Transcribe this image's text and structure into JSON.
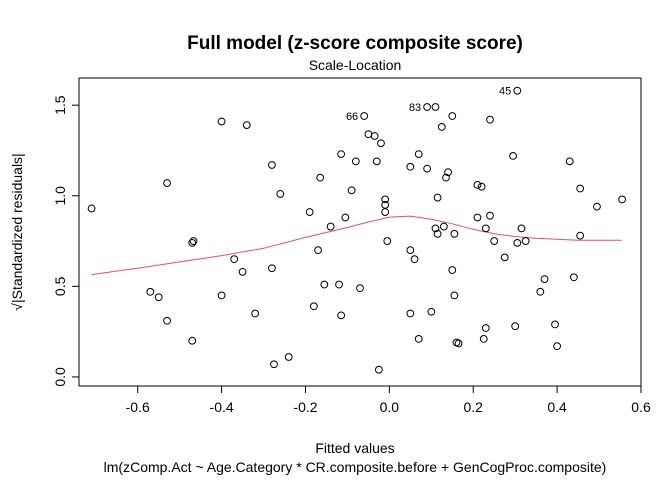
{
  "chart_data": {
    "type": "scatter",
    "title": "Full model (z-score composite score)",
    "subtitle": "Scale-Location",
    "xlabel": "Fitted values",
    "xlabel2": "lm(zComp.Act ~ Age.Category * CR.composite.before + GenCogProc.composite)",
    "ylabel": "√|Standardized residuals|",
    "xlim": [
      -0.74,
      0.6
    ],
    "ylim": [
      -0.05,
      1.65
    ],
    "x_ticks": [
      -0.6,
      -0.4,
      -0.2,
      0.0,
      0.2,
      0.4,
      0.6
    ],
    "x_tick_labels": [
      "-0.6",
      "-0.4",
      "-0.2",
      "0.0",
      "0.2",
      "0.4",
      "0.6"
    ],
    "y_ticks": [
      0.0,
      0.5,
      1.0,
      1.5
    ],
    "y_tick_labels": [
      "0.0",
      "0.5",
      "1.0",
      "1.5"
    ],
    "grid": false,
    "points": [
      {
        "x": -0.71,
        "y": 0.93
      },
      {
        "x": -0.57,
        "y": 0.47
      },
      {
        "x": -0.55,
        "y": 0.44
      },
      {
        "x": -0.53,
        "y": 1.07
      },
      {
        "x": -0.53,
        "y": 0.31
      },
      {
        "x": -0.47,
        "y": 0.74
      },
      {
        "x": -0.467,
        "y": 0.75
      },
      {
        "x": -0.47,
        "y": 0.2
      },
      {
        "x": -0.4,
        "y": 1.41
      },
      {
        "x": -0.4,
        "y": 0.45
      },
      {
        "x": -0.37,
        "y": 0.65
      },
      {
        "x": -0.35,
        "y": 0.58
      },
      {
        "x": -0.34,
        "y": 1.39
      },
      {
        "x": -0.32,
        "y": 0.35
      },
      {
        "x": -0.28,
        "y": 1.17
      },
      {
        "x": -0.28,
        "y": 0.6
      },
      {
        "x": -0.275,
        "y": 0.07
      },
      {
        "x": -0.26,
        "y": 1.01
      },
      {
        "x": -0.24,
        "y": 0.11
      },
      {
        "x": -0.19,
        "y": 0.91
      },
      {
        "x": -0.18,
        "y": 0.39
      },
      {
        "x": -0.17,
        "y": 0.7
      },
      {
        "x": -0.165,
        "y": 1.1
      },
      {
        "x": -0.155,
        "y": 0.51
      },
      {
        "x": -0.14,
        "y": 0.83
      },
      {
        "x": -0.115,
        "y": 1.23
      },
      {
        "x": -0.12,
        "y": 0.51
      },
      {
        "x": -0.115,
        "y": 0.34
      },
      {
        "x": -0.105,
        "y": 0.88
      },
      {
        "x": -0.09,
        "y": 1.03
      },
      {
        "x": -0.08,
        "y": 1.19
      },
      {
        "x": -0.07,
        "y": 0.49
      },
      {
        "x": -0.06,
        "y": 1.44,
        "label": "66"
      },
      {
        "x": -0.05,
        "y": 1.34
      },
      {
        "x": -0.035,
        "y": 1.33
      },
      {
        "x": -0.03,
        "y": 1.19
      },
      {
        "x": -0.02,
        "y": 1.29
      },
      {
        "x": -0.025,
        "y": 0.04
      },
      {
        "x": -0.01,
        "y": 0.98
      },
      {
        "x": -0.01,
        "y": 0.95
      },
      {
        "x": -0.01,
        "y": 0.91
      },
      {
        "x": -0.005,
        "y": 0.75
      },
      {
        "x": 0.05,
        "y": 1.16
      },
      {
        "x": 0.05,
        "y": 0.7
      },
      {
        "x": 0.05,
        "y": 0.35
      },
      {
        "x": 0.06,
        "y": 0.65
      },
      {
        "x": 0.07,
        "y": 1.23
      },
      {
        "x": 0.07,
        "y": 0.21
      },
      {
        "x": 0.09,
        "y": 1.49,
        "label": "83"
      },
      {
        "x": 0.09,
        "y": 1.15
      },
      {
        "x": 0.1,
        "y": 0.36
      },
      {
        "x": 0.11,
        "y": 1.49
      },
      {
        "x": 0.11,
        "y": 0.82
      },
      {
        "x": 0.115,
        "y": 0.79
      },
      {
        "x": 0.115,
        "y": 0.99
      },
      {
        "x": 0.125,
        "y": 1.38
      },
      {
        "x": 0.13,
        "y": 0.83
      },
      {
        "x": 0.135,
        "y": 1.1
      },
      {
        "x": 0.14,
        "y": 1.13
      },
      {
        "x": 0.15,
        "y": 1.44
      },
      {
        "x": 0.15,
        "y": 0.59
      },
      {
        "x": 0.155,
        "y": 0.79
      },
      {
        "x": 0.155,
        "y": 0.45
      },
      {
        "x": 0.16,
        "y": 0.19
      },
      {
        "x": 0.165,
        "y": 0.185
      },
      {
        "x": 0.21,
        "y": 1.06
      },
      {
        "x": 0.21,
        "y": 0.88
      },
      {
        "x": 0.22,
        "y": 1.05
      },
      {
        "x": 0.225,
        "y": 0.21
      },
      {
        "x": 0.23,
        "y": 0.27
      },
      {
        "x": 0.23,
        "y": 0.82
      },
      {
        "x": 0.24,
        "y": 0.89
      },
      {
        "x": 0.24,
        "y": 1.42
      },
      {
        "x": 0.25,
        "y": 0.75
      },
      {
        "x": 0.275,
        "y": 0.66
      },
      {
        "x": 0.295,
        "y": 1.22
      },
      {
        "x": 0.3,
        "y": 0.28
      },
      {
        "x": 0.305,
        "y": 0.74
      },
      {
        "x": 0.305,
        "y": 1.58,
        "label": "45"
      },
      {
        "x": 0.315,
        "y": 0.82
      },
      {
        "x": 0.325,
        "y": 0.75
      },
      {
        "x": 0.36,
        "y": 0.47
      },
      {
        "x": 0.37,
        "y": 0.54
      },
      {
        "x": 0.395,
        "y": 0.29
      },
      {
        "x": 0.4,
        "y": 0.17
      },
      {
        "x": 0.43,
        "y": 1.19
      },
      {
        "x": 0.44,
        "y": 0.55
      },
      {
        "x": 0.455,
        "y": 1.04
      },
      {
        "x": 0.455,
        "y": 0.78
      },
      {
        "x": 0.495,
        "y": 0.94
      },
      {
        "x": 0.555,
        "y": 0.98
      }
    ],
    "smoother": {
      "name": "",
      "color": "#DF536B",
      "x": [
        -0.71,
        -0.6,
        -0.5,
        -0.4,
        -0.3,
        -0.2,
        -0.1,
        -0.05,
        0.0,
        0.05,
        0.1,
        0.15,
        0.2,
        0.25,
        0.3,
        0.35,
        0.4,
        0.45,
        0.5,
        0.555
      ],
      "y": [
        0.565,
        0.6,
        0.635,
        0.67,
        0.71,
        0.77,
        0.825,
        0.855,
        0.882,
        0.888,
        0.87,
        0.845,
        0.815,
        0.79,
        0.775,
        0.765,
        0.76,
        0.755,
        0.755,
        0.755
      ]
    }
  }
}
